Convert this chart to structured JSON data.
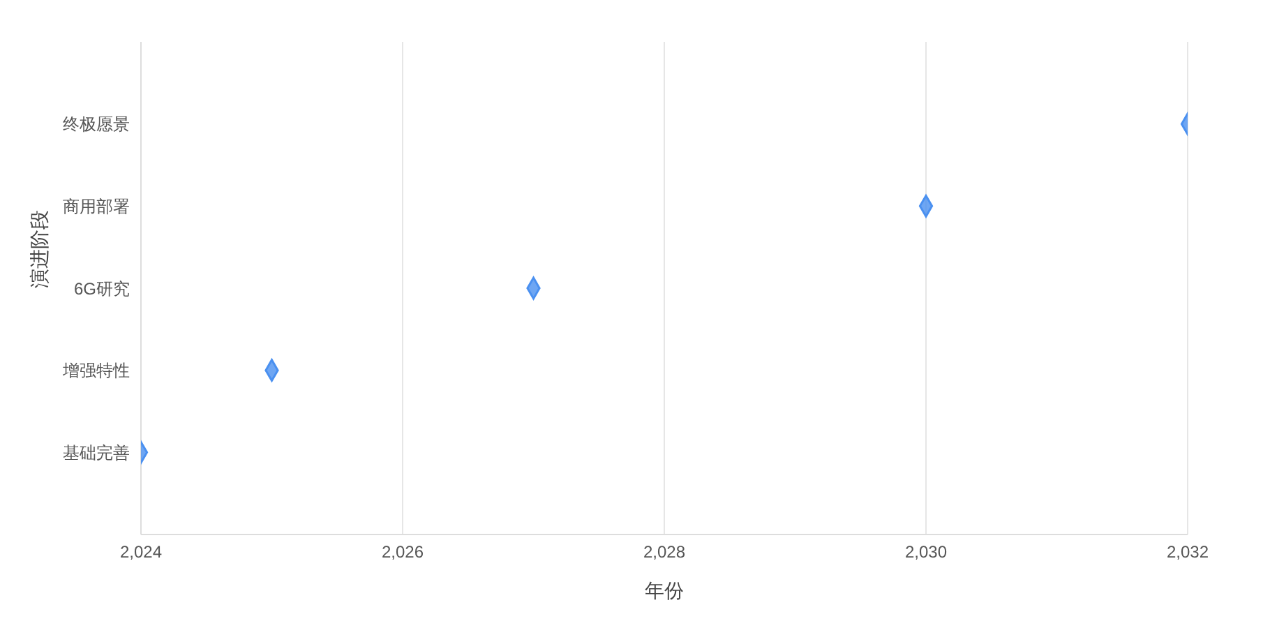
{
  "chart_data": {
    "type": "scatter",
    "orientation": "horizontal",
    "xlabel": "年份",
    "ylabel": "演进阶段",
    "categories": [
      "终极愿景",
      "商用部署",
      "6G研究",
      "增强特性",
      "基础完善"
    ],
    "values": [
      2032,
      2030,
      2027,
      2025,
      2024
    ],
    "color": "#4a90f0",
    "xlim": [
      2024,
      2032
    ],
    "xticks": [
      {
        "value": 2024,
        "label": "2,024"
      },
      {
        "value": 2026,
        "label": "2,026"
      },
      {
        "value": 2028,
        "label": "2,028"
      },
      {
        "value": 2030,
        "label": "2,030"
      },
      {
        "value": 2032,
        "label": "2,032"
      }
    ],
    "grid": "x",
    "marker": "diamond",
    "legend": false
  }
}
